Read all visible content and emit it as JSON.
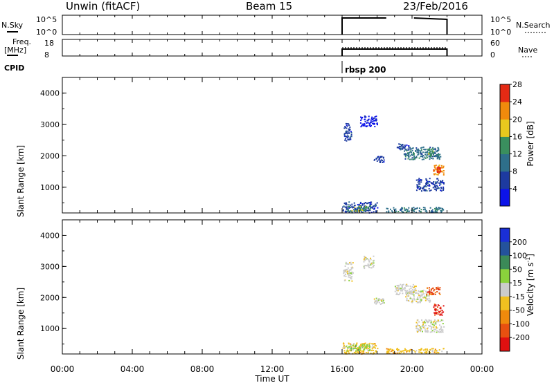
{
  "header": {
    "station": "Unwin (fitACF)",
    "beam": "Beam 15",
    "date": "23/Feb/2016"
  },
  "top_panels": {
    "nsky_label": "N.Sky",
    "nsky_ticks": [
      "10^5",
      "10^0"
    ],
    "nsearch_label": "N.Search",
    "nsearch_ticks": [
      "10^5",
      "10^0"
    ],
    "freq_label": "Freq.",
    "freq_unit": "[MHz]",
    "freq_ticks": [
      "18",
      "8"
    ],
    "nave_label": "Nave",
    "nave_ticks": [
      "60",
      "0"
    ],
    "cpid_label": "CPID",
    "cpid_value": "rbsp 200",
    "active_interval_hours": [
      16,
      22
    ]
  },
  "chart_data": [
    {
      "type": "heatmap",
      "name": "power",
      "ylabel": "Slant Range [km]",
      "ylim": [
        180,
        4500
      ],
      "xlim": [
        0,
        24
      ],
      "yticks": [
        "1000",
        "2000",
        "3000",
        "4000"
      ],
      "colorbar_label": "Power [dB]",
      "colorbar_ticks": [
        "4",
        "8",
        "12",
        "16",
        "20",
        "24",
        "28"
      ],
      "colorbar_colors": [
        "#0c13e8",
        "#1d3aa0",
        "#2e6f8a",
        "#3a8f5e",
        "#e8c81e",
        "#f08a0c",
        "#e42a14"
      ],
      "blobs": [
        {
          "x": [
            16.05,
            16.5
          ],
          "y": [
            2450,
            3050
          ],
          "level": 1
        },
        {
          "x": [
            17.0,
            18.0
          ],
          "y": [
            2950,
            3300
          ],
          "level": 0
        },
        {
          "x": [
            19.1,
            19.8
          ],
          "y": [
            2200,
            2400
          ],
          "level": 1
        },
        {
          "x": [
            19.5,
            21.6
          ],
          "y": [
            1900,
            2300
          ],
          "level": 2
        },
        {
          "x": [
            20.8,
            21.2
          ],
          "y": [
            2000,
            2250
          ],
          "level": 3
        },
        {
          "x": [
            21.2,
            21.8
          ],
          "y": [
            1400,
            1750
          ],
          "level": 5
        },
        {
          "x": [
            21.4,
            21.6
          ],
          "y": [
            1500,
            1650
          ],
          "level": 6
        },
        {
          "x": [
            20.2,
            21.8
          ],
          "y": [
            900,
            1300
          ],
          "level": 1
        },
        {
          "x": [
            17.8,
            18.4
          ],
          "y": [
            1800,
            2000
          ],
          "level": 1
        },
        {
          "x": [
            16.0,
            18.0
          ],
          "y": [
            200,
            550
          ],
          "level": 1
        },
        {
          "x": [
            16.2,
            17.6
          ],
          "y": [
            250,
            420
          ],
          "level": 3
        },
        {
          "x": [
            18.5,
            21.8
          ],
          "y": [
            220,
            380
          ],
          "level": 2
        }
      ]
    },
    {
      "type": "heatmap",
      "name": "velocity",
      "ylabel": "Slant Range [km]",
      "ylim": [
        180,
        4500
      ],
      "xlim": [
        0,
        24
      ],
      "yticks": [
        "1000",
        "2000",
        "3000",
        "4000"
      ],
      "colorbar_label": "Velocity [m s^-1]",
      "colorbar_ticks": [
        "200",
        "100",
        "50",
        "15",
        "-15",
        "-50",
        "-100",
        "-200"
      ],
      "colorbar_colors": [
        "#1a2fd6",
        "#24529c",
        "#3b8a58",
        "#8ad23c",
        "#cccccc",
        "#f0c020",
        "#f08a0c",
        "#e85010",
        "#e01010"
      ],
      "blobs": [
        {
          "x": [
            16.05,
            16.6
          ],
          "y": [
            2550,
            3150
          ],
          "level": 4
        },
        {
          "x": [
            17.2,
            17.8
          ],
          "y": [
            2950,
            3350
          ],
          "level": 4
        },
        {
          "x": [
            19.0,
            20.2
          ],
          "y": [
            2100,
            2450
          ],
          "level": 4
        },
        {
          "x": [
            19.6,
            21.0
          ],
          "y": [
            1850,
            2250
          ],
          "level": 4
        },
        {
          "x": [
            20.8,
            21.6
          ],
          "y": [
            2100,
            2350
          ],
          "level": 7
        },
        {
          "x": [
            21.2,
            21.8
          ],
          "y": [
            1450,
            1800
          ],
          "level": 8
        },
        {
          "x": [
            20.2,
            21.8
          ],
          "y": [
            900,
            1300
          ],
          "level": 4
        },
        {
          "x": [
            17.8,
            18.4
          ],
          "y": [
            1800,
            2000
          ],
          "level": 4
        },
        {
          "x": [
            16.0,
            18.0
          ],
          "y": [
            200,
            550
          ],
          "level": 5
        },
        {
          "x": [
            16.2,
            17.6
          ],
          "y": [
            300,
            500
          ],
          "level": 3
        },
        {
          "x": [
            18.5,
            21.8
          ],
          "y": [
            220,
            380
          ],
          "level": 5
        }
      ]
    }
  ],
  "xaxis": {
    "ticks": [
      "00:00",
      "04:00",
      "08:00",
      "12:00",
      "16:00",
      "20:00",
      "00:00"
    ],
    "label": "Time UT"
  }
}
